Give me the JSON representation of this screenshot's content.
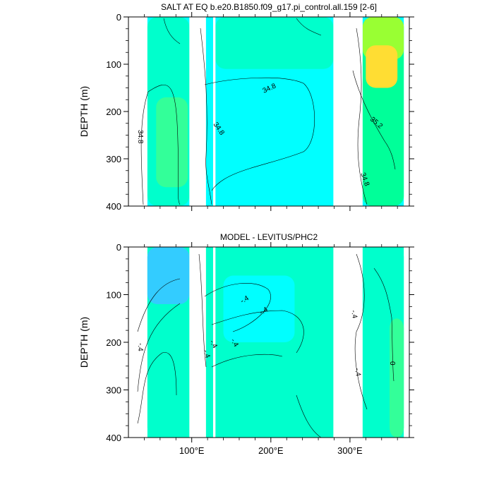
{
  "chart_data": [
    {
      "type": "heatmap",
      "title": "SALT AT EQ b.e20.B1850.f09_g17.pi_control.all.159 [2-6]",
      "xlabel": "",
      "ylabel": "DEPTH (m)",
      "xlim": [
        20,
        375
      ],
      "ylim": [
        400,
        0
      ],
      "yticks": [
        0,
        100,
        200,
        300,
        400
      ],
      "ytick_labels": [
        "0",
        "100",
        "200",
        "300",
        "400"
      ],
      "xticks": [
        100,
        200,
        300
      ],
      "xtick_labels": [
        "100°E",
        "200°E",
        "300°E"
      ],
      "background_color": "#00ffff",
      "gaps": [
        {
          "x0": 97,
          "x1": 118
        },
        {
          "x0": 127,
          "x1": 130
        },
        {
          "x0": 279,
          "x1": 316
        }
      ],
      "data_xrange": [
        44,
        368
      ],
      "regions": [
        {
          "x": [
            44,
            97
          ],
          "depth": [
            0,
            400
          ],
          "color": "#00ffcc"
        },
        {
          "x": [
            55,
            95
          ],
          "depth": [
            170,
            360
          ],
          "color": "#33ff99"
        },
        {
          "x": [
            118,
            279
          ],
          "depth": [
            0,
            400
          ],
          "color": "#00ffff"
        },
        {
          "x": [
            130,
            279
          ],
          "depth": [
            0,
            110
          ],
          "color": "#00ffcc"
        },
        {
          "x": [
            316,
            368
          ],
          "depth": [
            0,
            400
          ],
          "color": "#00ff99"
        },
        {
          "x": [
            316,
            368
          ],
          "depth": [
            0,
            90
          ],
          "color": "#99ff33"
        },
        {
          "x": [
            320,
            360
          ],
          "depth": [
            60,
            150
          ],
          "color": "#ffdd33"
        }
      ],
      "contour_labels": [
        "34.8",
        "34.8",
        "34.8",
        "35.2",
        "34.8"
      ],
      "grid": false,
      "legend": "none"
    },
    {
      "type": "heatmap",
      "title": "MODEL - LEVITUS/PHC2",
      "xlabel": "",
      "ylabel": "DEPTH (m)",
      "xlim": [
        20,
        375
      ],
      "ylim": [
        400,
        0
      ],
      "yticks": [
        0,
        100,
        200,
        300,
        400
      ],
      "ytick_labels": [
        "0",
        "100",
        "200",
        "300",
        "400"
      ],
      "xticks": [
        100,
        200,
        300
      ],
      "xtick_labels": [
        "100°E",
        "200°E",
        "300°E"
      ],
      "background_color": "#00ffcc",
      "gaps": [
        {
          "x0": 97,
          "x1": 118
        },
        {
          "x0": 127,
          "x1": 130
        },
        {
          "x0": 279,
          "x1": 316
        }
      ],
      "data_xrange": [
        44,
        368
      ],
      "regions": [
        {
          "x": [
            44,
            97
          ],
          "depth": [
            0,
            400
          ],
          "color": "#00ffcc"
        },
        {
          "x": [
            44,
            97
          ],
          "depth": [
            0,
            120
          ],
          "color": "#33ccff"
        },
        {
          "x": [
            118,
            279
          ],
          "depth": [
            0,
            400
          ],
          "color": "#00ffcc"
        },
        {
          "x": [
            140,
            230
          ],
          "depth": [
            60,
            200
          ],
          "color": "#00ffff"
        },
        {
          "x": [
            316,
            368
          ],
          "depth": [
            0,
            400
          ],
          "color": "#00ffcc"
        },
        {
          "x": [
            350,
            368
          ],
          "depth": [
            150,
            400
          ],
          "color": "#33ff99"
        }
      ],
      "contour_labels": [
        "-.4",
        "-.4",
        "-.4",
        "-.4",
        "-.4",
        "-.4",
        "0",
        "-.4",
        "-.4"
      ],
      "grid": false,
      "legend": "none"
    }
  ]
}
